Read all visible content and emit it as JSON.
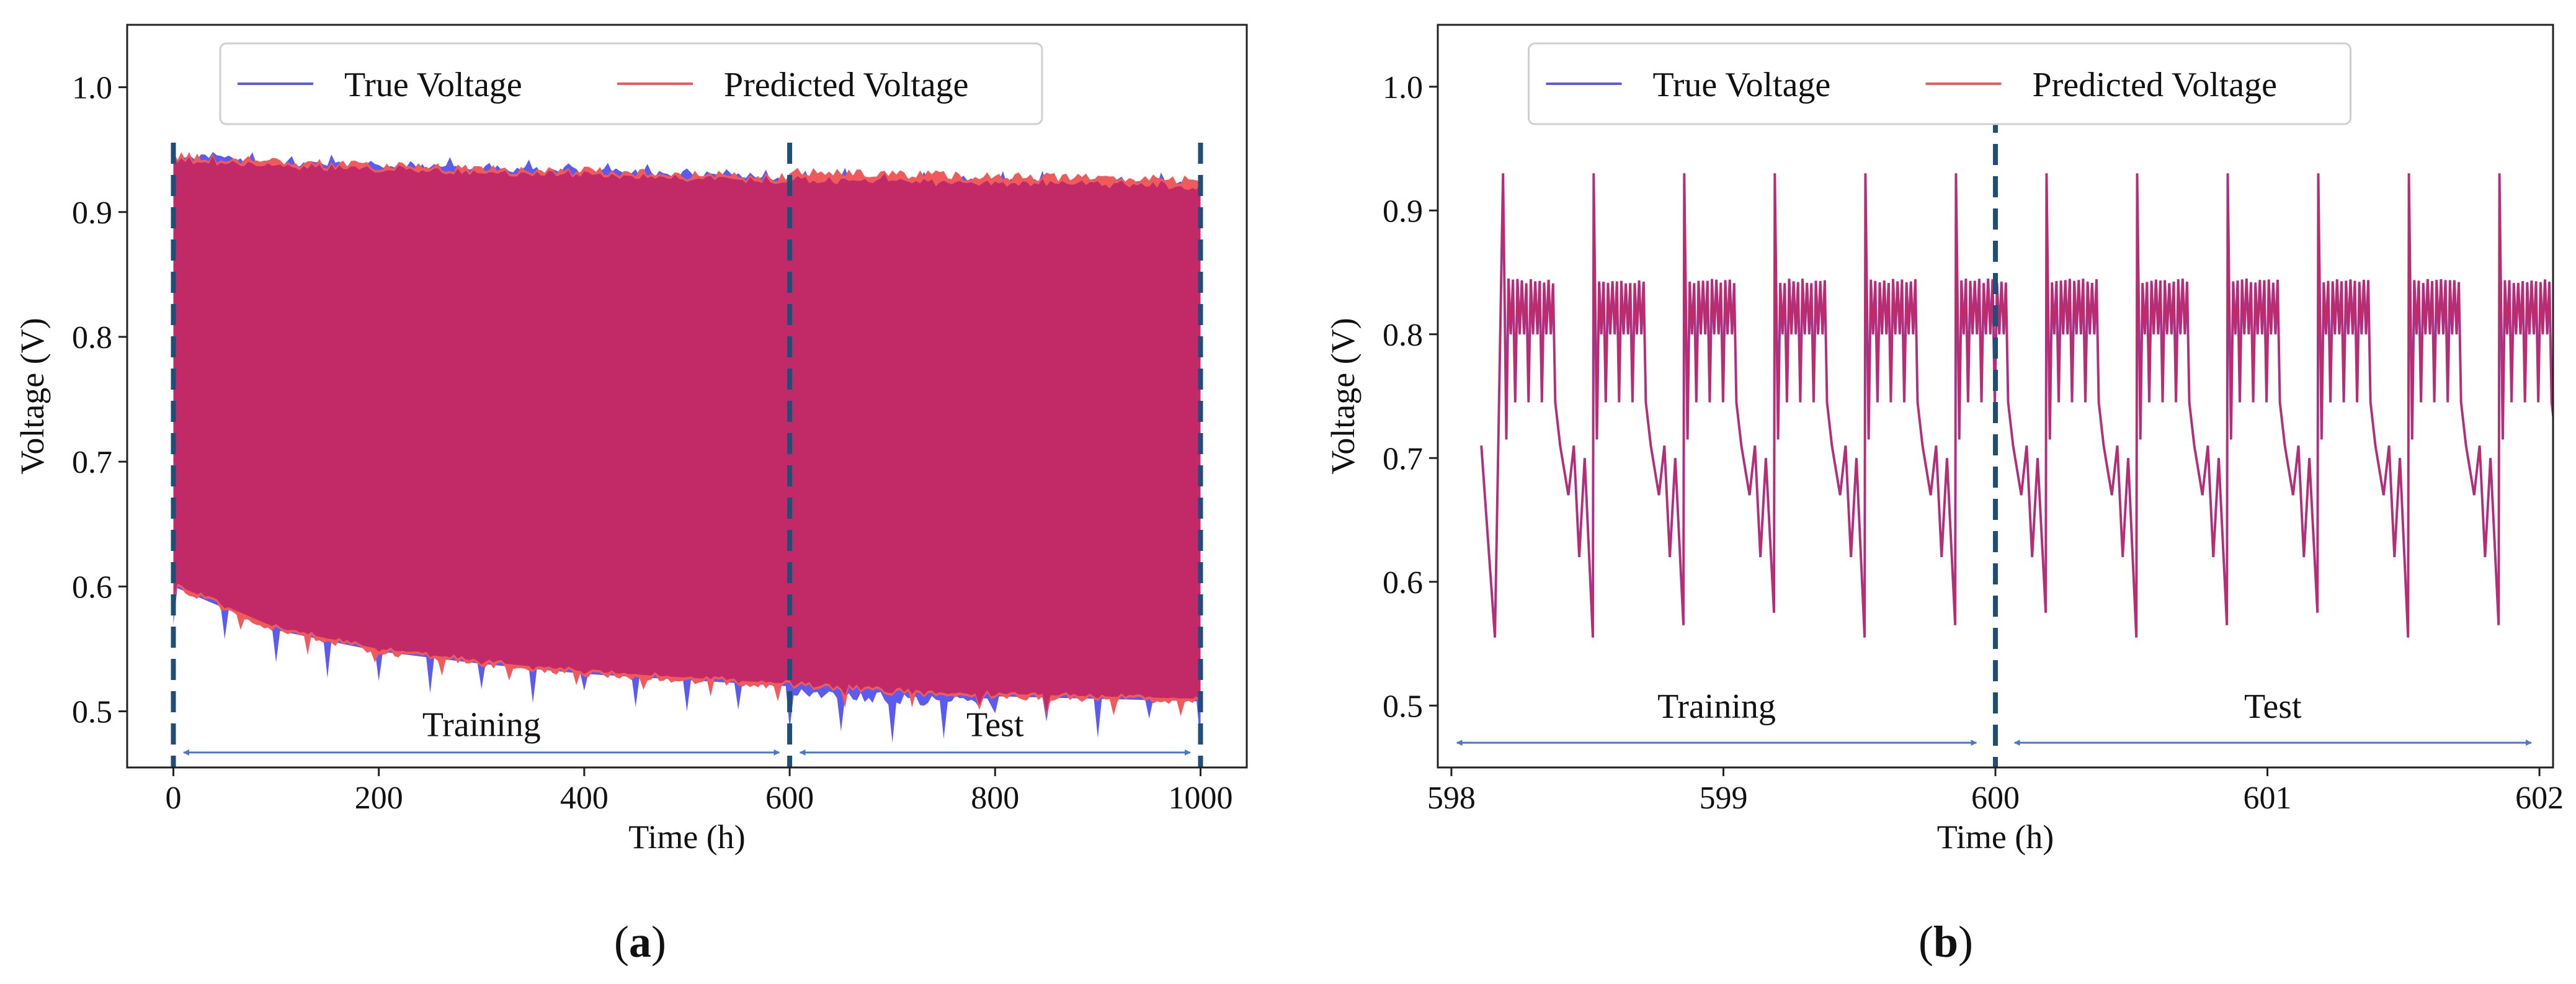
{
  "colors": {
    "true_voltage": "#5b5bf0",
    "predicted_voltage": "#f05a5a",
    "overlap": "#c12a66",
    "split_line": "#1f4e79",
    "arrow": "#4a78c8"
  },
  "chart_data": [
    {
      "type": "line",
      "panel": "a",
      "caption": {
        "open": "(",
        "letter": "a",
        "close": ")"
      },
      "xlabel": "Time (h)",
      "ylabel": "Voltage (V)",
      "xlim": [
        -45,
        1045
      ],
      "ylim": [
        0.455,
        1.05
      ],
      "xticks": [
        0,
        200,
        400,
        600,
        800,
        1000
      ],
      "xtick_labels": [
        "0",
        "200",
        "400",
        "600",
        "800",
        "1000"
      ],
      "yticks": [
        0.5,
        0.6,
        0.7,
        0.8,
        0.9,
        1.0
      ],
      "ytick_labels": [
        "0.5",
        "0.6",
        "0.7",
        "0.8",
        "0.9",
        "1.0"
      ],
      "legend": {
        "position": "top-center",
        "entries": [
          "True Voltage",
          "Predicted Voltage"
        ]
      },
      "series": [
        {
          "name": "True Voltage",
          "x": [
            0,
            100,
            200,
            300,
            400,
            500,
            600,
            700,
            800,
            900,
            1000
          ],
          "upper": [
            0.945,
            0.94,
            0.937,
            0.935,
            0.933,
            0.93,
            0.928,
            0.926,
            0.925,
            0.924,
            0.922
          ],
          "lower": [
            0.6,
            0.565,
            0.548,
            0.538,
            0.53,
            0.525,
            0.52,
            0.515,
            0.512,
            0.51,
            0.508
          ]
        },
        {
          "name": "Predicted Voltage",
          "x": [
            0,
            100,
            200,
            300,
            400,
            500,
            600,
            700,
            800,
            900,
            1000
          ],
          "upper": [
            0.945,
            0.94,
            0.937,
            0.935,
            0.933,
            0.93,
            0.928,
            0.926,
            0.925,
            0.924,
            0.922
          ],
          "lower": [
            0.6,
            0.565,
            0.548,
            0.538,
            0.53,
            0.525,
            0.52,
            0.515,
            0.512,
            0.51,
            0.508
          ]
        }
      ],
      "split_lines_x": [
        0,
        600,
        1000
      ],
      "regions": [
        {
          "label": "Training",
          "x_start": 10,
          "x_end": 590,
          "y": 0.467,
          "label_y": 0.48
        },
        {
          "label": "Test",
          "x_start": 610,
          "x_end": 990,
          "y": 0.467,
          "label_y": 0.48
        }
      ]
    },
    {
      "type": "line",
      "panel": "b",
      "caption": {
        "open": "(",
        "letter": "b",
        "close": ")"
      },
      "xlabel": "Time (h)",
      "ylabel": "Voltage (V)",
      "xlim": [
        597.95,
        602.05
      ],
      "ylim": [
        0.45,
        1.05
      ],
      "xticks": [
        598,
        599,
        600,
        601,
        602
      ],
      "xtick_labels": [
        "598",
        "599",
        "600",
        "601",
        "602"
      ],
      "yticks": [
        0.5,
        0.6,
        0.7,
        0.8,
        0.9,
        1.0
      ],
      "ytick_labels": [
        "0.5",
        "0.6",
        "0.7",
        "0.8",
        "0.9",
        "1.0"
      ],
      "legend": {
        "position": "top-center",
        "entries": [
          "True Voltage",
          "Predicted Voltage"
        ]
      },
      "cycle": {
        "period": 0.333,
        "first_peak": 598.19,
        "end": 601.9,
        "peak": 0.93,
        "plateau_high": 0.845,
        "plateau_low": 0.8,
        "trough": 0.715,
        "dip_min": 0.555,
        "pre_dip": [
          0.71,
          0.67
        ]
      },
      "series": [
        {
          "name": "True Voltage"
        },
        {
          "name": "Predicted Voltage"
        }
      ],
      "split_lines_x": [
        600
      ],
      "regions": [
        {
          "label": "Training",
          "x_start": 598.02,
          "x_end": 599.93,
          "y": 0.47,
          "label_y": 0.49
        },
        {
          "label": "Test",
          "x_start": 600.07,
          "x_end": 601.97,
          "y": 0.47,
          "label_y": 0.49
        }
      ]
    }
  ]
}
